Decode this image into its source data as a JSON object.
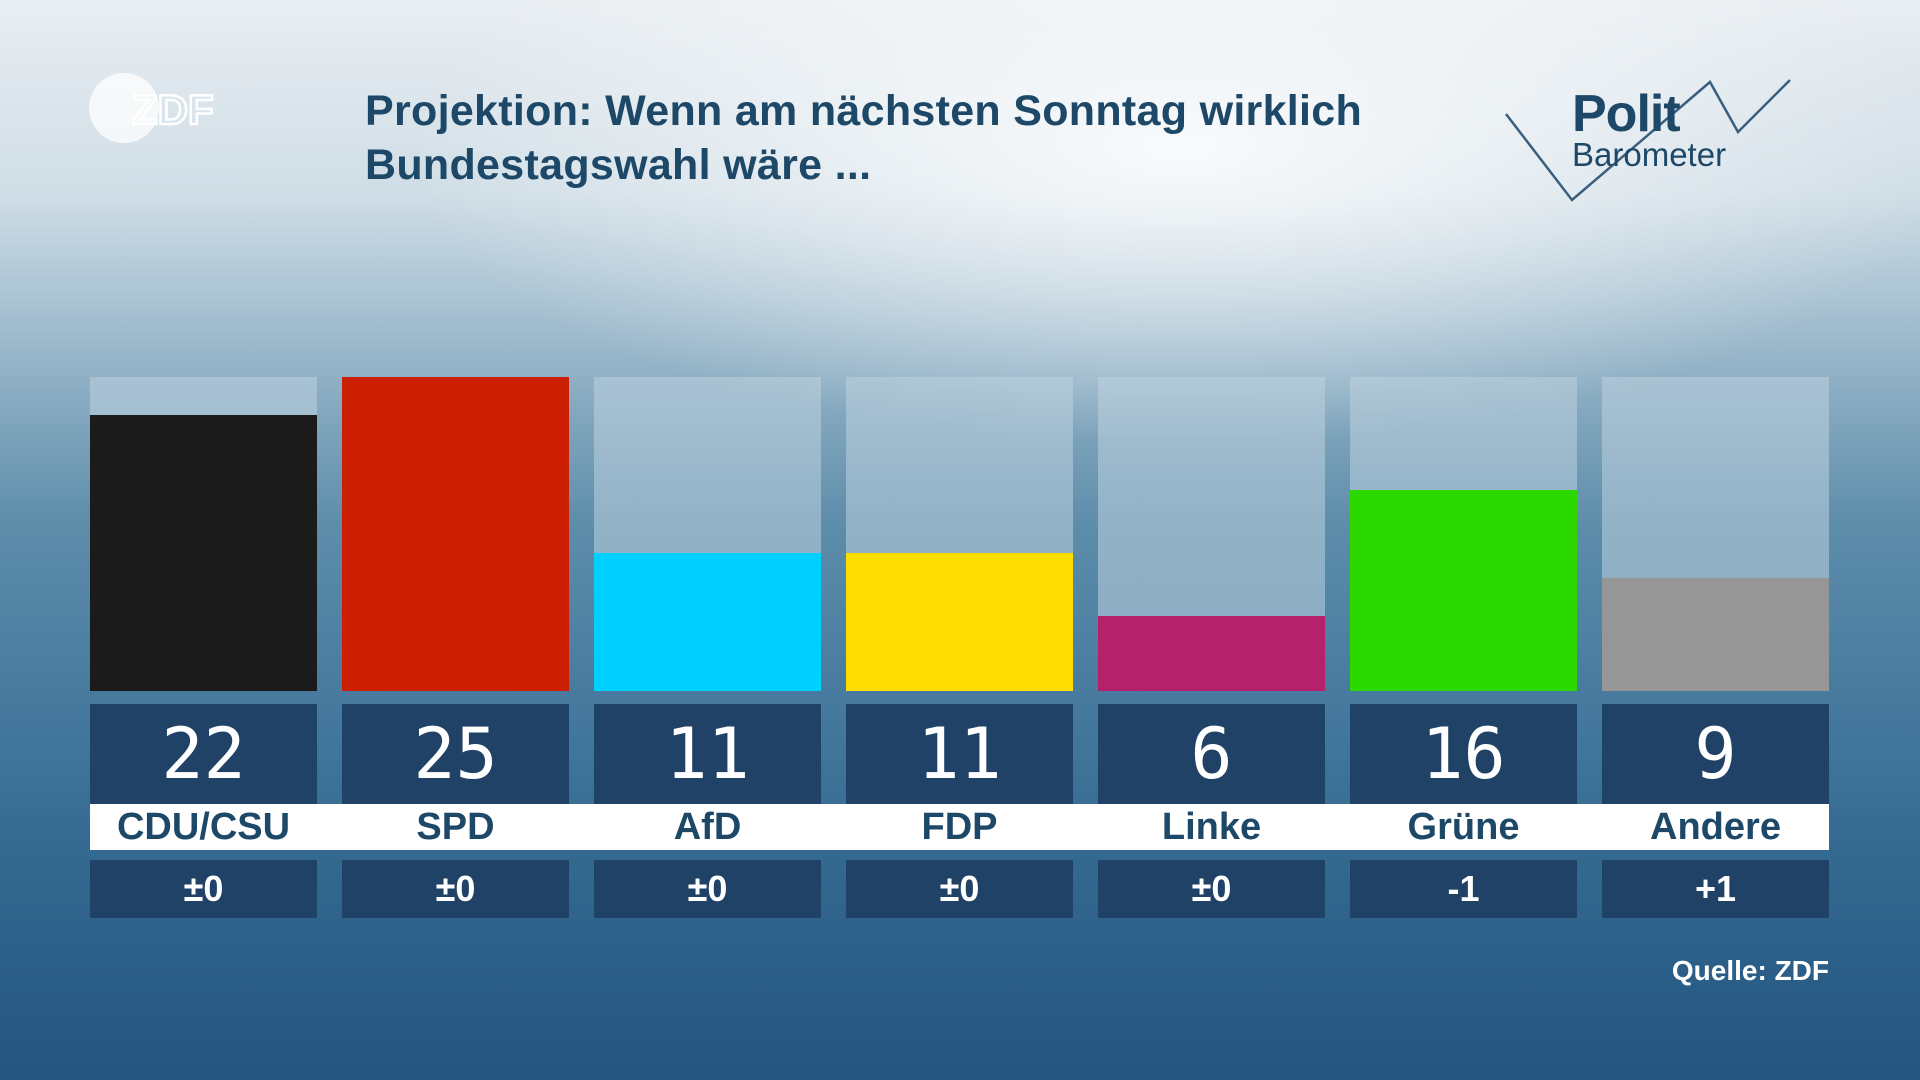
{
  "logo": {
    "brand": "ZDF"
  },
  "title": {
    "line1": "Projektion: Wenn am nächsten Sonntag wirklich",
    "line2": "Bundestagswahl wäre ..."
  },
  "politbarometer": {
    "word1": "Polit",
    "word2": "Barometer"
  },
  "source": "Quelle: ZDF",
  "chart_data": {
    "type": "bar",
    "title": "Projektion: Wenn am nächsten Sonntag wirklich Bundestagswahl wäre ...",
    "xlabel": "",
    "ylabel": "",
    "ylim": [
      0,
      25
    ],
    "categories": [
      "CDU/CSU",
      "SPD",
      "AfD",
      "FDP",
      "Linke",
      "Grüne",
      "Andere"
    ],
    "values": [
      22,
      25,
      11,
      11,
      6,
      16,
      9
    ],
    "value_labels": [
      "22",
      "25",
      "11",
      "11",
      "6",
      "16",
      "9"
    ],
    "changes": [
      "±0",
      "±0",
      "±0",
      "±0",
      "±0",
      "-1",
      "+1"
    ],
    "colors": [
      "#1b1b1b",
      "#cc1e00",
      "#00d0ff",
      "#ffdd00",
      "#b5216b",
      "#2bd900",
      "#969696"
    ]
  }
}
